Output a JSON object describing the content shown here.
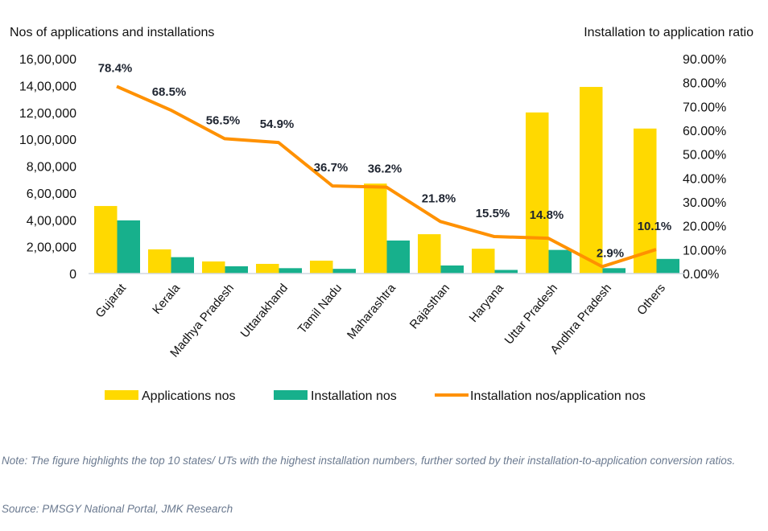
{
  "chart_data": {
    "type": "bar",
    "ylabel_left": "Nos of applications and installations",
    "ylabel_right": "Installation to application ratio",
    "categories": [
      "Gujarat",
      "Kerala",
      "Madhya Pradesh",
      "Uttarakhand",
      "Tamil Nadu",
      "Maharashtra",
      "Rajasthan",
      "Haryana",
      "Uttar Pradesh",
      "Andhra Pradesh",
      "Others"
    ],
    "ylim_left": [
      0,
      1600000
    ],
    "yticks_left": [
      "0",
      "2,00,000",
      "4,00,000",
      "6,00,000",
      "8,00,000",
      "10,00,000",
      "12,00,000",
      "14,00,000",
      "16,00,000"
    ],
    "ylim_right": [
      0,
      90
    ],
    "yticks_right": [
      "0.00%",
      "10.00%",
      "20.00%",
      "30.00%",
      "40.00%",
      "50.00%",
      "60.00%",
      "70.00%",
      "80.00%",
      "90.00%"
    ],
    "series": [
      {
        "name": "Applications nos",
        "type": "bar",
        "color": "#FFD900",
        "values": [
          503000,
          180000,
          90000,
          72000,
          96000,
          670000,
          293000,
          185000,
          1200000,
          1390000,
          1080000
        ]
      },
      {
        "name": "Installation nos",
        "type": "bar",
        "color": "#17B08C",
        "values": [
          396000,
          122000,
          54000,
          40000,
          35000,
          246000,
          60000,
          27000,
          176000,
          40000,
          109000
        ]
      },
      {
        "name": "Installation nos/application nos",
        "type": "line",
        "axis": "right",
        "color": "#FF9100",
        "values": [
          78.4,
          68.5,
          56.5,
          54.9,
          36.7,
          36.2,
          21.8,
          15.5,
          14.8,
          2.9,
          10.1
        ],
        "labels": [
          "78.4%",
          "68.5%",
          "56.5%",
          "54.9%",
          "36.7%",
          "36.2%",
          "21.8%",
          "15.5%",
          "14.8%",
          "2.9%",
          "10.1%"
        ]
      }
    ],
    "grid": false,
    "legend": "bottom"
  },
  "note": "Note: The figure highlights the top 10 states/ UTs with the highest installation numbers, further sorted by their installation-to-application conversion ratios.",
  "source": "Source: PMSGY National Portal, JMK Research"
}
